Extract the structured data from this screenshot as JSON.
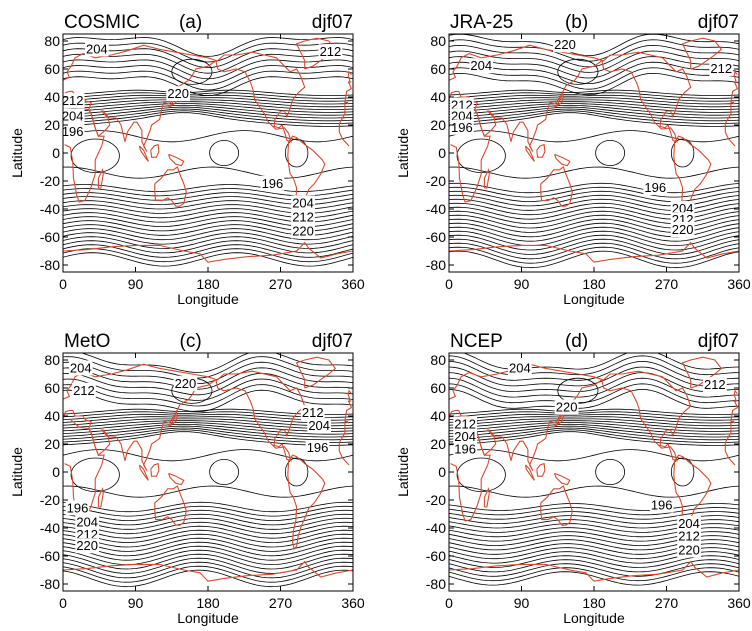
{
  "chart_data": [
    {
      "type": "contour",
      "title": "COSMIC",
      "panel_letter": "(a)",
      "season": "djf07",
      "xlabel": "Longitude",
      "ylabel": "Latitude",
      "xlim": [
        0,
        360
      ],
      "ylim": [
        -85,
        85
      ],
      "xticks": [
        "0",
        "90",
        "180",
        "270",
        "360"
      ],
      "yticks": [
        "80",
        "60",
        "40",
        "20",
        "0",
        "-20",
        "-40",
        "-60",
        "-80"
      ],
      "contour_labels": [
        {
          "text": "204",
          "lon": 42,
          "lat": 74
        },
        {
          "text": "212",
          "lon": 332,
          "lat": 72
        },
        {
          "text": "220",
          "lon": 143,
          "lat": 42
        },
        {
          "text": "212",
          "lon": 12,
          "lat": 37
        },
        {
          "text": "204",
          "lon": 12,
          "lat": 26
        },
        {
          "text": "196",
          "lon": 12,
          "lat": 15
        },
        {
          "text": "196",
          "lon": 260,
          "lat": -22
        },
        {
          "text": "204",
          "lon": 298,
          "lat": -36
        },
        {
          "text": "212",
          "lon": 298,
          "lat": -46
        },
        {
          "text": "220",
          "lon": 298,
          "lat": -56
        }
      ],
      "coastline_color": "#d9492e",
      "contour_color": "#000000"
    },
    {
      "type": "contour",
      "title": "JRA-25",
      "panel_letter": "(b)",
      "season": "djf07",
      "xlabel": "Longitude",
      "ylabel": "Latitude",
      "xlim": [
        0,
        360
      ],
      "ylim": [
        -85,
        85
      ],
      "xticks": [
        "0",
        "90",
        "180",
        "270",
        "360"
      ],
      "yticks": [
        "80",
        "60",
        "40",
        "20",
        "0",
        "-20",
        "-40",
        "-60",
        "-80"
      ],
      "contour_labels": [
        {
          "text": "220",
          "lon": 144,
          "lat": 77
        },
        {
          "text": "204",
          "lon": 40,
          "lat": 62
        },
        {
          "text": "212",
          "lon": 338,
          "lat": 60
        },
        {
          "text": "212",
          "lon": 16,
          "lat": 34
        },
        {
          "text": "204",
          "lon": 16,
          "lat": 26
        },
        {
          "text": "196",
          "lon": 16,
          "lat": 18
        },
        {
          "text": "196",
          "lon": 256,
          "lat": -25
        },
        {
          "text": "204",
          "lon": 290,
          "lat": -40
        },
        {
          "text": "212",
          "lon": 290,
          "lat": -48
        },
        {
          "text": "220",
          "lon": 290,
          "lat": -55
        }
      ],
      "coastline_color": "#d9492e",
      "contour_color": "#000000"
    },
    {
      "type": "contour",
      "title": "MetO",
      "panel_letter": "(c)",
      "season": "djf07",
      "xlabel": "Longitude",
      "ylabel": "Latitude",
      "xlim": [
        0,
        360
      ],
      "ylim": [
        -85,
        85
      ],
      "xticks": [
        "0",
        "90",
        "180",
        "270",
        "360"
      ],
      "yticks": [
        "80",
        "60",
        "40",
        "20",
        "0",
        "-20",
        "-40",
        "-60",
        "-80"
      ],
      "contour_labels": [
        {
          "text": "204",
          "lon": 22,
          "lat": 74
        },
        {
          "text": "212",
          "lon": 26,
          "lat": 58
        },
        {
          "text": "220",
          "lon": 152,
          "lat": 63
        },
        {
          "text": "212",
          "lon": 310,
          "lat": 42
        },
        {
          "text": "204",
          "lon": 318,
          "lat": 33
        },
        {
          "text": "196",
          "lon": 316,
          "lat": 17
        },
        {
          "text": "196",
          "lon": 18,
          "lat": -26
        },
        {
          "text": "204",
          "lon": 30,
          "lat": -36
        },
        {
          "text": "212",
          "lon": 30,
          "lat": -45
        },
        {
          "text": "220",
          "lon": 30,
          "lat": -53
        }
      ],
      "coastline_color": "#d9492e",
      "contour_color": "#000000"
    },
    {
      "type": "contour",
      "title": "NCEP",
      "panel_letter": "(d)",
      "season": "djf07",
      "xlabel": "Longitude",
      "ylabel": "Latitude",
      "xlim": [
        0,
        360
      ],
      "ylim": [
        -85,
        85
      ],
      "xticks": [
        "0",
        "90",
        "180",
        "270",
        "360"
      ],
      "yticks": [
        "80",
        "60",
        "40",
        "20",
        "0",
        "-20",
        "-40",
        "-60",
        "-80"
      ],
      "contour_labels": [
        {
          "text": "204",
          "lon": 88,
          "lat": 74
        },
        {
          "text": "212",
          "lon": 330,
          "lat": 62
        },
        {
          "text": "220",
          "lon": 146,
          "lat": 46
        },
        {
          "text": "212",
          "lon": 20,
          "lat": 34
        },
        {
          "text": "204",
          "lon": 20,
          "lat": 25
        },
        {
          "text": "196",
          "lon": 20,
          "lat": 16
        },
        {
          "text": "196",
          "lon": 264,
          "lat": -24
        },
        {
          "text": "204",
          "lon": 298,
          "lat": -37
        },
        {
          "text": "212",
          "lon": 298,
          "lat": -46
        },
        {
          "text": "220",
          "lon": 298,
          "lat": -56
        }
      ],
      "coastline_color": "#d9492e",
      "contour_color": "#000000"
    }
  ]
}
